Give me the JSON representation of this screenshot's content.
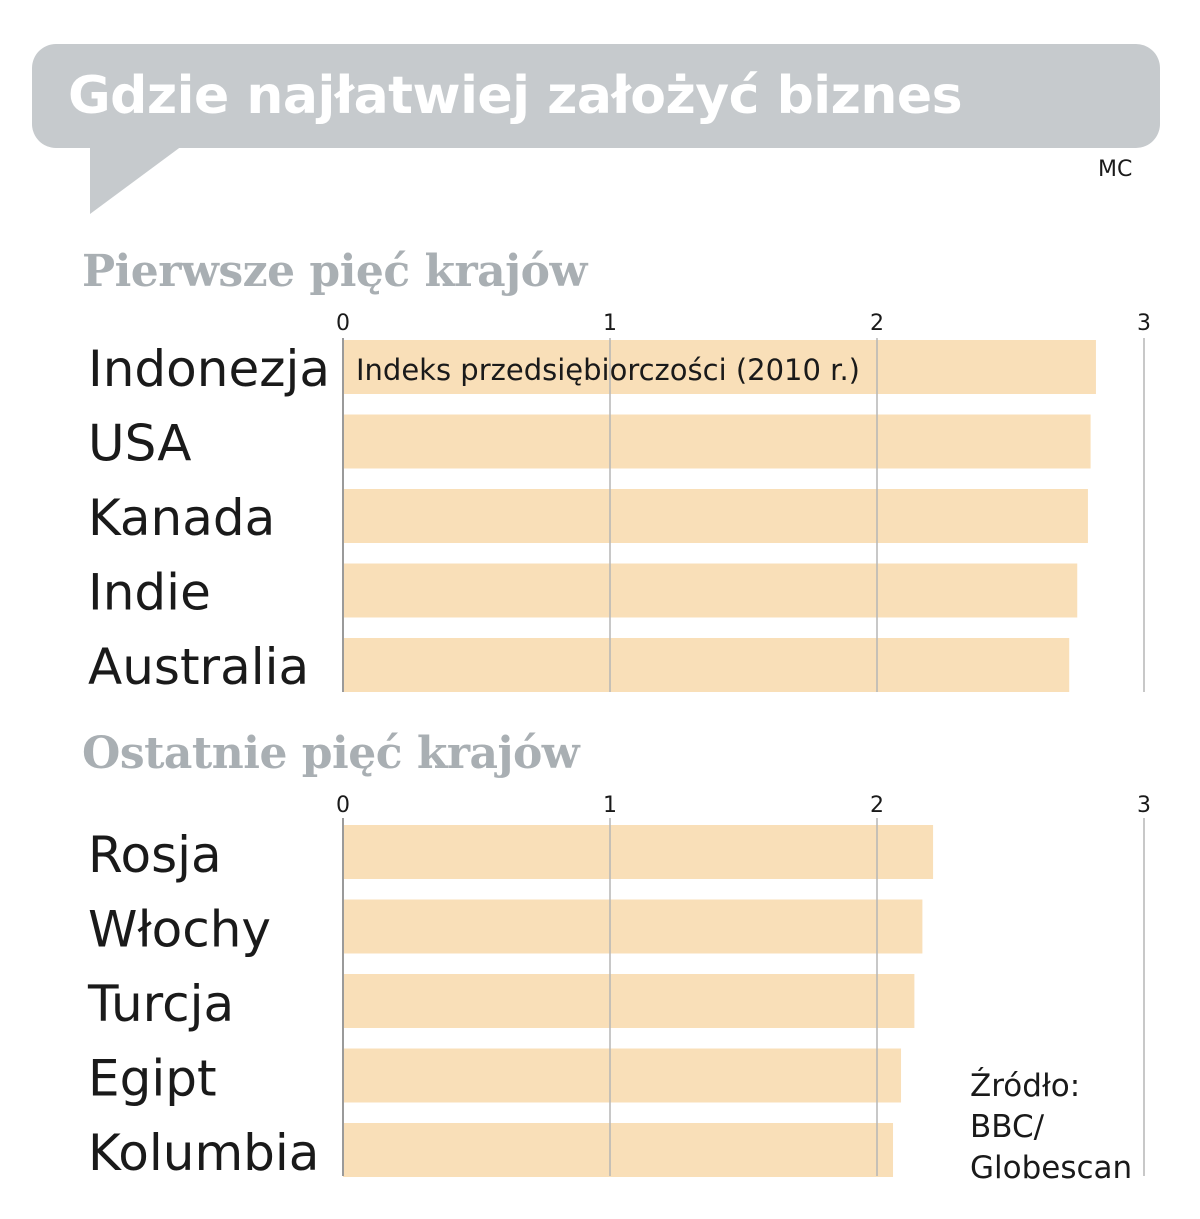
{
  "header": {
    "title": "Gdzie najłatwiej założyć biznes",
    "author": "MC"
  },
  "chart_data": [
    {
      "type": "bar",
      "orientation": "horizontal",
      "title": "Pierwsze pięć krajów",
      "annotation": "Indeks przedsiębiorczości (2010 r.)",
      "categories": [
        "Indonezja",
        "USA",
        "Kanada",
        "Indie",
        "Australia"
      ],
      "values": [
        2.82,
        2.8,
        2.79,
        2.75,
        2.72
      ],
      "xlim": [
        0,
        3
      ],
      "ticks": [
        "0",
        "1",
        "2",
        "3"
      ],
      "grid": true,
      "bar_color": "#f9dfb8"
    },
    {
      "type": "bar",
      "orientation": "horizontal",
      "title": "Ostatnie pięć krajów",
      "categories": [
        "Rosja",
        "Włochy",
        "Turcja",
        "Egipt",
        "Kolumbia"
      ],
      "values": [
        2.21,
        2.17,
        2.14,
        2.09,
        2.06
      ],
      "xlim": [
        0,
        3
      ],
      "ticks": [
        "0",
        "1",
        "2",
        "3"
      ],
      "grid": true,
      "bar_color": "#f9dfb8"
    }
  ],
  "source": {
    "line1": "Źródło:",
    "line2": "BBC/",
    "line3": "Globescan"
  },
  "colors": {
    "bubble": "#c6cacd",
    "section_title": "#a9afb3",
    "bar": "#f9dfb8",
    "grid": "#b5b5b5"
  }
}
